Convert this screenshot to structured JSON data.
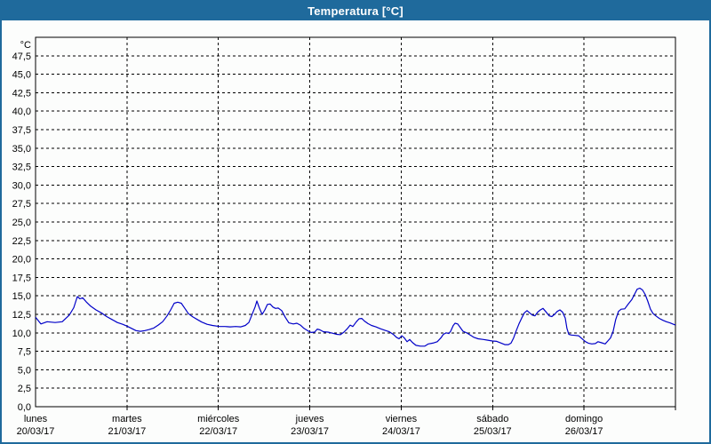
{
  "window": {
    "title": "Temperatura [°C]"
  },
  "colors": {
    "titlebar": "#1f6a9c",
    "titlebar_text": "#ffffff",
    "window_border": "#1f6a9c",
    "background": "#fcfdfc",
    "plot_border": "#000000",
    "grid": "#000000",
    "label": "#000000",
    "line": "#0000c8"
  },
  "chart_data": {
    "type": "line",
    "title": "Temperatura [°C]",
    "xlabel": "",
    "ylabel": "°C",
    "unit_label": "°C",
    "ylim": [
      0,
      50
    ],
    "ytick_step": 2.5,
    "ytick_labels": [
      "0,0",
      "2,5",
      "5,0",
      "7,5",
      "10,0",
      "12,5",
      "15,0",
      "17,5",
      "20,0",
      "22,5",
      "25,0",
      "27,5",
      "30,0",
      "32,5",
      "35,0",
      "37,5",
      "40,0",
      "42,5",
      "45,0",
      "47,5"
    ],
    "xlim_days": [
      0,
      7
    ],
    "grid": "dashed",
    "legend": "none",
    "x_categories": [
      {
        "name": "lunes",
        "date": "20/03/17"
      },
      {
        "name": "martes",
        "date": "21/03/17"
      },
      {
        "name": "miércoles",
        "date": "22/03/17"
      },
      {
        "name": "jueves",
        "date": "23/03/17"
      },
      {
        "name": "viernes",
        "date": "24/03/17"
      },
      {
        "name": "sábado",
        "date": "25/03/17"
      },
      {
        "name": "domingo",
        "date": "26/03/17"
      }
    ],
    "series": [
      {
        "name": "Temperatura",
        "color": "#0000c8",
        "points": [
          [
            0.0,
            12.1
          ],
          [
            0.058,
            11.2
          ],
          [
            0.126,
            11.5
          ],
          [
            0.214,
            11.4
          ],
          [
            0.292,
            11.5
          ],
          [
            0.369,
            12.4
          ],
          [
            0.418,
            13.4
          ],
          [
            0.457,
            14.9
          ],
          [
            0.486,
            14.6
          ],
          [
            0.515,
            14.75
          ],
          [
            0.554,
            14.2
          ],
          [
            0.603,
            13.6
          ],
          [
            0.661,
            13.1
          ],
          [
            0.719,
            12.7
          ],
          [
            0.778,
            12.2
          ],
          [
            0.836,
            11.8
          ],
          [
            0.894,
            11.4
          ],
          [
            0.953,
            11.15
          ],
          [
            1.001,
            10.9
          ],
          [
            1.05,
            10.6
          ],
          [
            1.099,
            10.3
          ],
          [
            1.147,
            10.2
          ],
          [
            1.196,
            10.3
          ],
          [
            1.244,
            10.45
          ],
          [
            1.293,
            10.65
          ],
          [
            1.342,
            11.05
          ],
          [
            1.39,
            11.5
          ],
          [
            1.439,
            12.3
          ],
          [
            1.478,
            13.1
          ],
          [
            1.517,
            14.0
          ],
          [
            1.556,
            14.15
          ],
          [
            1.594,
            14.0
          ],
          [
            1.633,
            13.3
          ],
          [
            1.672,
            12.6
          ],
          [
            1.721,
            12.15
          ],
          [
            1.769,
            11.8
          ],
          [
            1.818,
            11.45
          ],
          [
            1.876,
            11.15
          ],
          [
            1.935,
            11.0
          ],
          [
            2.013,
            10.85
          ],
          [
            2.071,
            10.85
          ],
          [
            2.129,
            10.8
          ],
          [
            2.188,
            10.85
          ],
          [
            2.246,
            10.8
          ],
          [
            2.294,
            11.0
          ],
          [
            2.333,
            11.4
          ],
          [
            2.372,
            12.6
          ],
          [
            2.401,
            13.5
          ],
          [
            2.421,
            14.3
          ],
          [
            2.45,
            13.3
          ],
          [
            2.479,
            12.5
          ],
          [
            2.508,
            13.1
          ],
          [
            2.537,
            13.85
          ],
          [
            2.567,
            13.9
          ],
          [
            2.596,
            13.5
          ],
          [
            2.625,
            13.3
          ],
          [
            2.654,
            13.35
          ],
          [
            2.693,
            13.0
          ],
          [
            2.732,
            12.1
          ],
          [
            2.771,
            11.35
          ],
          [
            2.819,
            11.2
          ],
          [
            2.858,
            11.3
          ],
          [
            2.897,
            11.05
          ],
          [
            2.936,
            10.6
          ],
          [
            2.975,
            10.3
          ],
          [
            3.014,
            10.05
          ],
          [
            3.053,
            10.1
          ],
          [
            3.082,
            10.5
          ],
          [
            3.111,
            10.4
          ],
          [
            3.15,
            10.15
          ],
          [
            3.199,
            10.1
          ],
          [
            3.247,
            9.95
          ],
          [
            3.296,
            9.8
          ],
          [
            3.335,
            9.75
          ],
          [
            3.374,
            10.1
          ],
          [
            3.413,
            10.6
          ],
          [
            3.442,
            11.05
          ],
          [
            3.471,
            10.85
          ],
          [
            3.51,
            11.5
          ],
          [
            3.539,
            11.9
          ],
          [
            3.568,
            11.95
          ],
          [
            3.597,
            11.6
          ],
          [
            3.636,
            11.25
          ],
          [
            3.675,
            11.0
          ],
          [
            3.723,
            10.8
          ],
          [
            3.772,
            10.55
          ],
          [
            3.821,
            10.35
          ],
          [
            3.869,
            10.15
          ],
          [
            3.918,
            9.75
          ],
          [
            3.947,
            9.4
          ],
          [
            3.976,
            9.2
          ],
          [
            4.006,
            9.6
          ],
          [
            4.035,
            9.3
          ],
          [
            4.064,
            8.8
          ],
          [
            4.093,
            9.1
          ],
          [
            4.122,
            8.7
          ],
          [
            4.161,
            8.3
          ],
          [
            4.21,
            8.2
          ],
          [
            4.258,
            8.2
          ],
          [
            4.297,
            8.5
          ],
          [
            4.346,
            8.6
          ],
          [
            4.394,
            8.8
          ],
          [
            4.433,
            9.3
          ],
          [
            4.462,
            9.8
          ],
          [
            4.492,
            10.0
          ],
          [
            4.521,
            9.9
          ],
          [
            4.54,
            10.2
          ],
          [
            4.569,
            11.0
          ],
          [
            4.589,
            11.3
          ],
          [
            4.618,
            11.2
          ],
          [
            4.647,
            10.7
          ],
          [
            4.676,
            10.2
          ],
          [
            4.715,
            10.0
          ],
          [
            4.754,
            9.7
          ],
          [
            4.793,
            9.4
          ],
          [
            4.841,
            9.2
          ],
          [
            4.9,
            9.1
          ],
          [
            4.948,
            9.0
          ],
          [
            4.997,
            8.9
          ],
          [
            5.045,
            8.85
          ],
          [
            5.094,
            8.6
          ],
          [
            5.133,
            8.4
          ],
          [
            5.172,
            8.4
          ],
          [
            5.201,
            8.6
          ],
          [
            5.23,
            9.3
          ],
          [
            5.259,
            10.3
          ],
          [
            5.288,
            11.2
          ],
          [
            5.318,
            12.0
          ],
          [
            5.347,
            12.7
          ],
          [
            5.376,
            13.0
          ],
          [
            5.405,
            12.7
          ],
          [
            5.434,
            12.4
          ],
          [
            5.463,
            12.3
          ],
          [
            5.493,
            12.8
          ],
          [
            5.522,
            13.1
          ],
          [
            5.551,
            13.3
          ],
          [
            5.58,
            12.9
          ],
          [
            5.619,
            12.3
          ],
          [
            5.648,
            12.2
          ],
          [
            5.677,
            12.5
          ],
          [
            5.707,
            12.9
          ],
          [
            5.736,
            13.1
          ],
          [
            5.765,
            12.8
          ],
          [
            5.794,
            12.0
          ],
          [
            5.813,
            10.6
          ],
          [
            5.833,
            9.8
          ],
          [
            5.862,
            9.7
          ],
          [
            5.901,
            9.65
          ],
          [
            5.94,
            9.6
          ],
          [
            5.988,
            9.1
          ],
          [
            6.017,
            8.8
          ],
          [
            6.046,
            8.6
          ],
          [
            6.085,
            8.5
          ],
          [
            6.124,
            8.55
          ],
          [
            6.153,
            8.8
          ],
          [
            6.192,
            8.65
          ],
          [
            6.231,
            8.5
          ],
          [
            6.26,
            8.9
          ],
          [
            6.289,
            9.3
          ],
          [
            6.318,
            10.2
          ],
          [
            6.347,
            11.8
          ],
          [
            6.377,
            12.9
          ],
          [
            6.406,
            13.2
          ],
          [
            6.445,
            13.25
          ],
          [
            6.484,
            13.9
          ],
          [
            6.523,
            14.5
          ],
          [
            6.552,
            15.2
          ],
          [
            6.581,
            15.9
          ],
          [
            6.61,
            16.05
          ],
          [
            6.639,
            15.8
          ],
          [
            6.668,
            15.2
          ],
          [
            6.697,
            14.3
          ],
          [
            6.727,
            13.2
          ],
          [
            6.756,
            12.6
          ],
          [
            6.785,
            12.3
          ],
          [
            6.824,
            11.95
          ],
          [
            6.863,
            11.7
          ],
          [
            6.901,
            11.5
          ],
          [
            6.94,
            11.35
          ],
          [
            6.979,
            11.15
          ],
          [
            7.0,
            11.05
          ]
        ]
      }
    ]
  }
}
